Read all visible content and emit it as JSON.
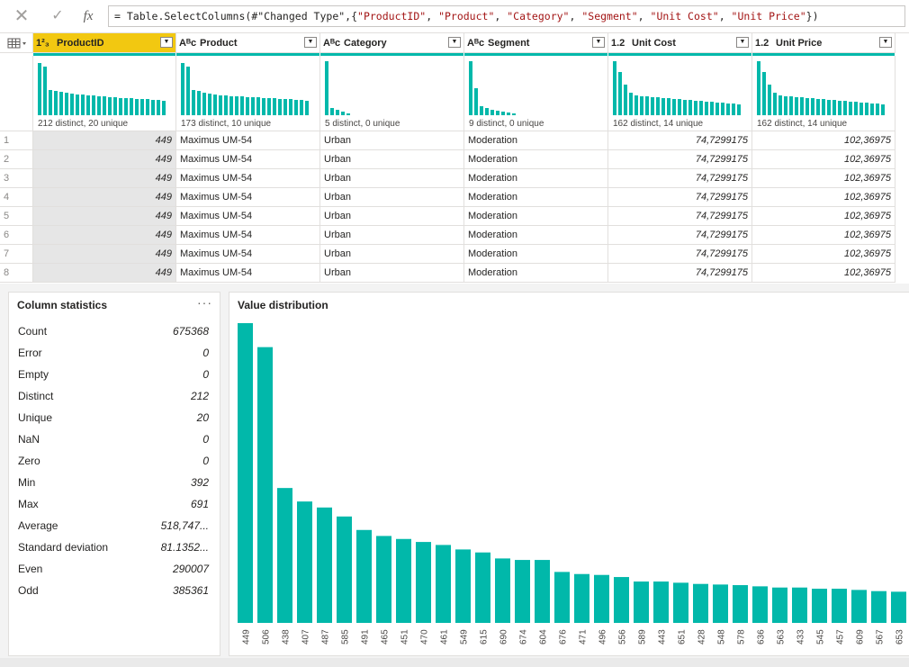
{
  "formula_bar": {
    "cancel_icon": "close-icon",
    "commit_icon": "check-icon",
    "fx_label": "fx",
    "prefix": "= Table.SelectColumns(#\"Changed Type\",{",
    "args": [
      "\"ProductID\"",
      "\"Product\"",
      "\"Category\"",
      "\"Segment\"",
      "\"Unit Cost\"",
      "\"Unit Price\""
    ],
    "suffix": "})"
  },
  "columns": [
    {
      "type": "1²₃",
      "name": "ProductID",
      "profile": "212 distinct, 20 unique"
    },
    {
      "type": "Aᴮc",
      "name": "Product",
      "profile": "173 distinct, 10 unique"
    },
    {
      "type": "Aᴮc",
      "name": "Category",
      "profile": "5 distinct, 0 unique"
    },
    {
      "type": "Aᴮc",
      "name": "Segment",
      "profile": "9 distinct, 0 unique"
    },
    {
      "type": "1.2",
      "name": "Unit Cost",
      "profile": "162 distinct, 14 unique"
    },
    {
      "type": "1.2",
      "name": "Unit Price",
      "profile": "162 distinct, 14 unique"
    }
  ],
  "rows": [
    [
      "449",
      "Maximus UM-54",
      "Urban",
      "Moderation",
      "74,7299175",
      "102,36975"
    ],
    [
      "449",
      "Maximus UM-54",
      "Urban",
      "Moderation",
      "74,7299175",
      "102,36975"
    ],
    [
      "449",
      "Maximus UM-54",
      "Urban",
      "Moderation",
      "74,7299175",
      "102,36975"
    ],
    [
      "449",
      "Maximus UM-54",
      "Urban",
      "Moderation",
      "74,7299175",
      "102,36975"
    ],
    [
      "449",
      "Maximus UM-54",
      "Urban",
      "Moderation",
      "74,7299175",
      "102,36975"
    ],
    [
      "449",
      "Maximus UM-54",
      "Urban",
      "Moderation",
      "74,7299175",
      "102,36975"
    ],
    [
      "449",
      "Maximus UM-54",
      "Urban",
      "Moderation",
      "74,7299175",
      "102,36975"
    ],
    [
      "449",
      "Maximus UM-54",
      "Urban",
      "Moderation",
      "74,7299175",
      "102,36975"
    ]
  ],
  "row_numbers": [
    "1",
    "2",
    "3",
    "4",
    "5",
    "6",
    "7",
    "8"
  ],
  "column_statistics": {
    "title": "Column statistics",
    "more": "···",
    "items": [
      {
        "label": "Count",
        "value": "675368"
      },
      {
        "label": "Error",
        "value": "0"
      },
      {
        "label": "Empty",
        "value": "0"
      },
      {
        "label": "Distinct",
        "value": "212"
      },
      {
        "label": "Unique",
        "value": "20"
      },
      {
        "label": "NaN",
        "value": "0"
      },
      {
        "label": "Zero",
        "value": "0"
      },
      {
        "label": "Min",
        "value": "392"
      },
      {
        "label": "Max",
        "value": "691"
      },
      {
        "label": "Average",
        "value": "518,747..."
      },
      {
        "label": "Standard deviation",
        "value": "81.1352..."
      },
      {
        "label": "Even",
        "value": "290007"
      },
      {
        "label": "Odd",
        "value": "385361"
      }
    ]
  },
  "chart_data": {
    "type": "bar",
    "title": "Value distribution",
    "categories": [
      "449",
      "506",
      "438",
      "407",
      "487",
      "585",
      "491",
      "465",
      "451",
      "470",
      "461",
      "549",
      "615",
      "690",
      "674",
      "604",
      "676",
      "471",
      "496",
      "556",
      "589",
      "443",
      "651",
      "428",
      "548",
      "578",
      "636",
      "563",
      "433",
      "545",
      "457",
      "609",
      "567",
      "653"
    ],
    "values": [
      100,
      92,
      45,
      40.5,
      38.5,
      35.5,
      31,
      29,
      28,
      27,
      26,
      24.5,
      23.5,
      21.5,
      21,
      21,
      17,
      16.3,
      16,
      15.3,
      13.8,
      13.8,
      13.4,
      13,
      12.8,
      12.6,
      12.2,
      11.8,
      11.8,
      11.4,
      11.4,
      11,
      10.6,
      10.4
    ],
    "color": "#01b8aa",
    "ylim": [
      0,
      100
    ],
    "grid": false
  },
  "colors": {
    "accent": "#01b8aa",
    "selected_header": "#f2c811"
  }
}
